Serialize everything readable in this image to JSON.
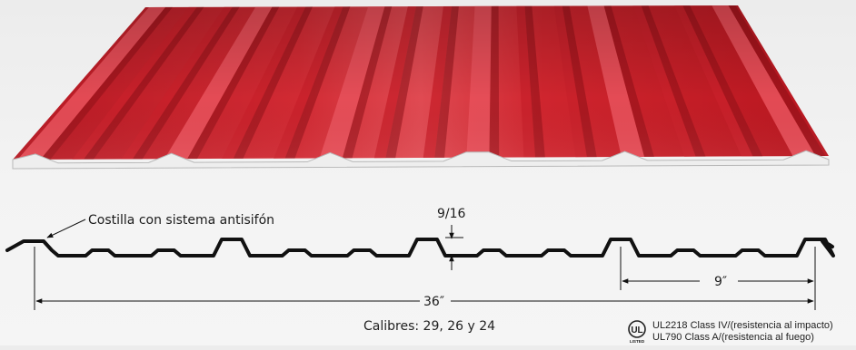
{
  "diagram": {
    "rib_label": "Costilla con sistema antisifón",
    "height_label": "9/16",
    "rib_spacing_label": "9″",
    "width_label": "36″"
  },
  "caption": "Calibres: 29, 26 y 24",
  "certification": {
    "logo_text": "UL",
    "logo_subtext": "LISTED",
    "line1": "UL2218 Class IV/(resistencia al impacto)",
    "line2": "UL790 Class A/(resistencia al fuego)"
  },
  "colors": {
    "panel_red": "#c8202b",
    "panel_dark": "#8e1018",
    "panel_light": "#e7505a",
    "line": "#111111"
  }
}
